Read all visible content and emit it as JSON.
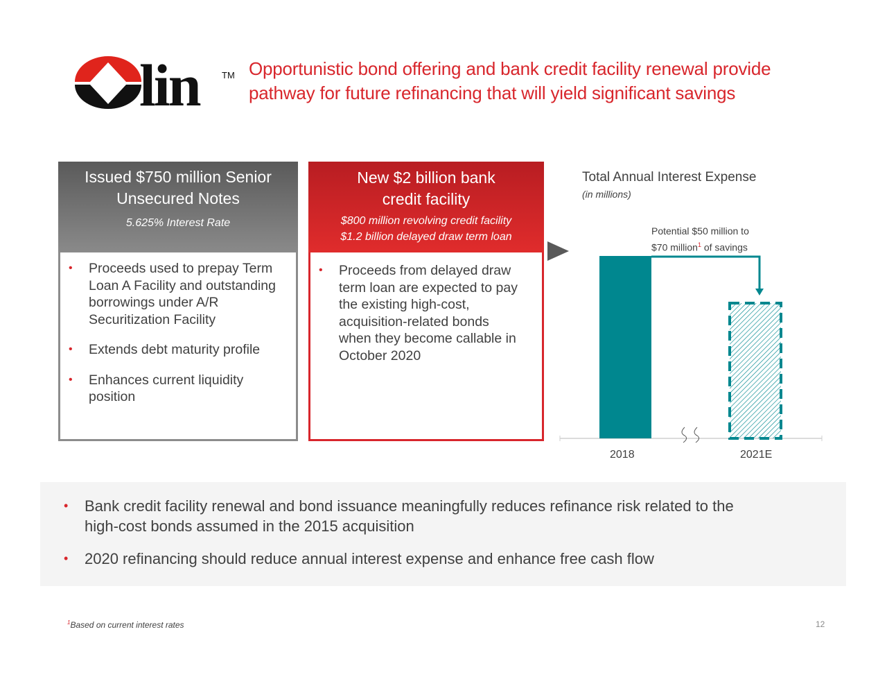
{
  "logo": {
    "text": "olin",
    "trademark": "TM",
    "colors": {
      "red": "#e0241c",
      "black": "#111111"
    }
  },
  "title": {
    "line1": "Opportunistic bond offering and bank credit facility renewal provide",
    "line2": "pathway for future refinancing that will yield significant savings",
    "color": "#d8262c"
  },
  "left_box": {
    "heading_line1": "Issued $750 million Senior",
    "heading_line2": "Unsecured Notes",
    "subheading": "5.625% Interest Rate",
    "bullets": [
      {
        "line1": "Proceeds used to prepay Term",
        "line2": "Loan A Facility and outstanding",
        "line3": "borrowings under A/R",
        "line4": "Securitization Facility"
      },
      {
        "line1": "Extends debt maturity profile"
      },
      {
        "line1": "Enhances current liquidity",
        "line2": "position"
      }
    ]
  },
  "middle_box": {
    "heading_line1": "New $2 billion bank",
    "heading_line2": "credit facility",
    "sub_line1": "$800 million revolving credit facility",
    "sub_line2": "$1.2 billion delayed draw term loan",
    "bullets": [
      {
        "line1": "Proceeds from delayed draw",
        "line2": "term loan are expected to pay",
        "line3": "the existing high-cost,",
        "line4": "acquisition-related bonds",
        "line5": "when they become callable in",
        "line6": "October 2020"
      }
    ]
  },
  "chart_data": {
    "type": "bar",
    "title": "Total Annual Interest Expense",
    "subtitle": "(in millions)",
    "categories": [
      "2018",
      "2021E"
    ],
    "annotation": {
      "text_line1": "Potential $50 million to",
      "text_line2_a": "$70 million",
      "superscript": "1",
      "text_line2_b": " of savings"
    },
    "colors": {
      "bar": "#00878f",
      "projected": "#00878f hatched dashed"
    },
    "axis_break": true
  },
  "bottom": {
    "bullets": [
      {
        "line1": "Bank credit facility renewal and bond issuance meaningfully reduces refinance risk related to the",
        "line2": "high-cost bonds assumed in the 2015 acquisition"
      },
      {
        "line1": "2020 refinancing should reduce annual interest expense and enhance free cash flow"
      }
    ]
  },
  "footnote": {
    "marker": "1",
    "text": "Based on current interest rates"
  },
  "page_number": "12",
  "bullet_char": "•"
}
